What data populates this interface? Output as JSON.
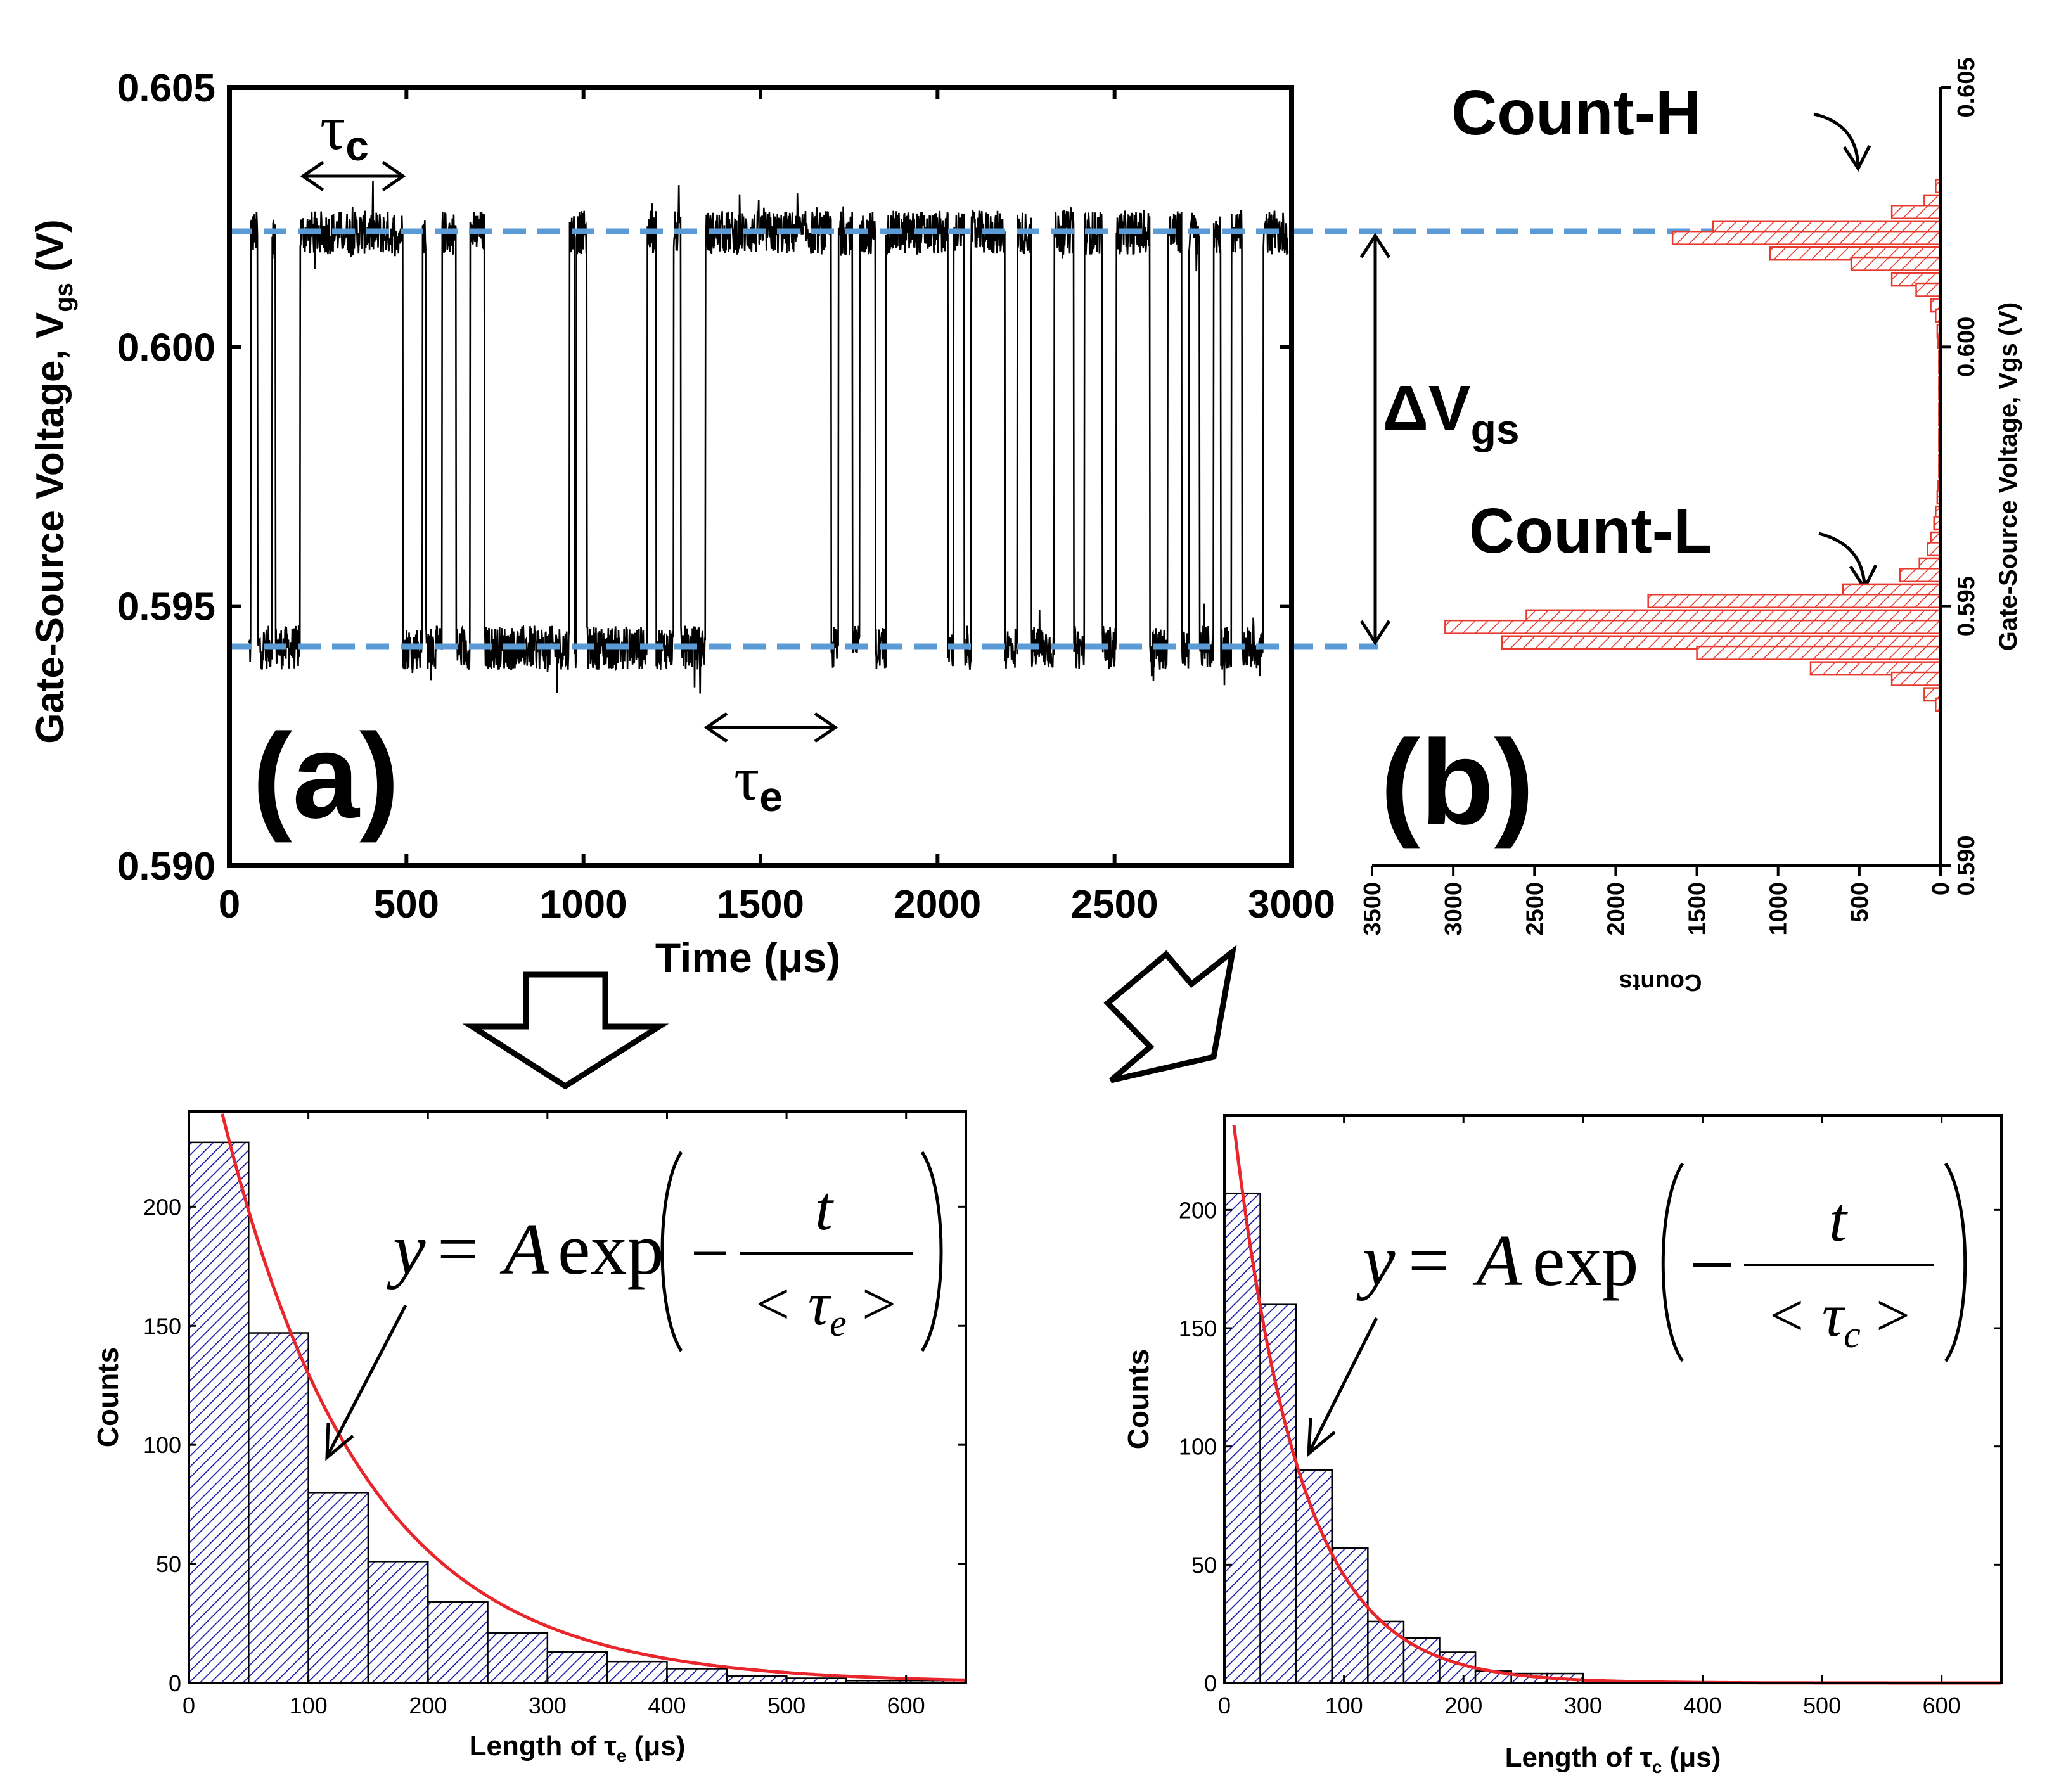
{
  "chart_data": [
    {
      "id": "a",
      "type": "line",
      "panel_label": "(a)",
      "xlabel": "Time (μs)",
      "ylabel": "Gate-Source Voltage, V",
      "ylabel_sub": "gs",
      "ylabel_unit": " (V)",
      "xlim": [
        0,
        3000
      ],
      "ylim": [
        0.59,
        0.605
      ],
      "xticks": [
        "0",
        "500",
        "1000",
        "1500",
        "2000",
        "2500",
        "3000"
      ],
      "xtick_values": [
        0,
        500,
        1000,
        1500,
        2000,
        2500,
        3000
      ],
      "yticks": [
        "0.590",
        "0.595",
        "0.600",
        "0.605"
      ],
      "ytick_values": [
        0.59,
        0.595,
        0.6,
        0.605
      ],
      "levels": {
        "high": 0.6022,
        "low": 0.5942
      },
      "switch_times_us": [
        60,
        80,
        120,
        130,
        200,
        490,
        545,
        555,
        600,
        640,
        680,
        720,
        960,
        975,
        980,
        1010,
        1180,
        1205,
        1255,
        1275,
        1345,
        1700,
        1720,
        1760,
        1780,
        1825,
        1855,
        2030,
        2045,
        2075,
        2095,
        2190,
        2225,
        2265,
        2330,
        2385,
        2415,
        2465,
        2505,
        2600,
        2650,
        2690,
        2710,
        2740,
        2780,
        2800,
        2830,
        2860,
        2920
      ],
      "annotations": {
        "tau_c": "τ",
        "tau_c_sub": "c",
        "tau_e": "τ",
        "tau_e_sub": "e",
        "delta": "ΔV",
        "delta_sub": "gs",
        "count_h": "Count-H",
        "count_l": "Count-L"
      }
    },
    {
      "id": "b",
      "type": "bar",
      "orientation": "horizontal-reversed",
      "panel_label": "(b)",
      "xlabel": "Counts",
      "ylabel": "Gate-Source Voltage, Vgs (V)",
      "xlim": [
        0,
        3500
      ],
      "ylim": [
        0.59,
        0.605
      ],
      "xticks": [
        "0",
        "500",
        "1000",
        "1500",
        "2000",
        "2500",
        "3000",
        "3500"
      ],
      "xtick_values": [
        0,
        500,
        1000,
        1500,
        2000,
        2500,
        3000,
        3500
      ],
      "yticks": [
        "0.590",
        "0.595",
        "0.600",
        "0.605"
      ],
      "ytick_values": [
        0.59,
        0.595,
        0.6,
        0.605
      ],
      "bin_width": 0.00025,
      "bins": [
        0.6031,
        0.6028,
        0.6026,
        0.6023,
        0.6021,
        0.6018,
        0.6016,
        0.6013,
        0.6011,
        0.6008,
        0.6006,
        0.6003,
        0.6001,
        0.5998,
        0.5996,
        0.5993,
        0.5991,
        0.5988,
        0.5986,
        0.5983,
        0.5981,
        0.5978,
        0.5976,
        0.5973,
        0.5971,
        0.5968,
        0.5966,
        0.5963,
        0.5961,
        0.5958,
        0.5956,
        0.5953,
        0.5951,
        0.5948,
        0.5946,
        0.5943,
        0.5941,
        0.5938,
        0.5936,
        0.5933,
        0.5931
      ],
      "values": [
        30,
        100,
        300,
        1400,
        1650,
        1050,
        550,
        300,
        150,
        60,
        30,
        20,
        15,
        10,
        10,
        10,
        10,
        10,
        10,
        10,
        10,
        10,
        10,
        15,
        20,
        30,
        40,
        60,
        80,
        130,
        250,
        600,
        1800,
        2550,
        3050,
        2700,
        1500,
        800,
        300,
        100,
        30
      ]
    },
    {
      "id": "c",
      "type": "bar",
      "xlabel": "Length of τ",
      "xlabel_sub": "e",
      "xlabel_unit": " (μs)",
      "ylabel": "Counts",
      "xlim": [
        0,
        650
      ],
      "ylim": [
        0,
        240
      ],
      "xticks": [
        "0",
        "100",
        "200",
        "300",
        "400",
        "500",
        "600"
      ],
      "xtick_values": [
        0,
        100,
        200,
        300,
        400,
        500,
        600
      ],
      "yticks": [
        "0",
        "50",
        "100",
        "150",
        "200"
      ],
      "ytick_values": [
        0,
        50,
        100,
        150,
        200
      ],
      "bin_width": 50,
      "bin_starts": [
        0,
        50,
        100,
        150,
        200,
        250,
        300,
        350,
        400,
        450,
        500,
        550,
        600
      ],
      "values": [
        227,
        147,
        80,
        51,
        34,
        21,
        13,
        9,
        6,
        3,
        2,
        1,
        1
      ],
      "fit": {
        "type": "exp",
        "A": 303,
        "tau": 118,
        "label_lhs": "y",
        "label_eq": "= ",
        "label_A": "A",
        "label_exp": "exp",
        "label_num": "t",
        "label_den": "< τ",
        "label_den_sub": "e",
        "label_den_end": " >"
      }
    },
    {
      "id": "d",
      "type": "bar",
      "xlabel": "Length of τ",
      "xlabel_sub": "c",
      "xlabel_unit": " (μs)",
      "ylabel": "Counts",
      "xlim": [
        0,
        650
      ],
      "ylim": [
        0,
        240
      ],
      "xticks": [
        "0",
        "100",
        "200",
        "300",
        "400",
        "500",
        "600"
      ],
      "xtick_values": [
        0,
        100,
        200,
        300,
        400,
        500,
        600
      ],
      "yticks": [
        "0",
        "50",
        "100",
        "150",
        "200"
      ],
      "ytick_values": [
        0,
        50,
        100,
        150,
        200
      ],
      "bin_width": 30,
      "bin_starts": [
        0,
        30,
        60,
        90,
        120,
        150,
        180,
        210,
        240,
        270,
        300,
        330
      ],
      "values": [
        207,
        160,
        90,
        57,
        26,
        19,
        13,
        5,
        4,
        4,
        1,
        1
      ],
      "fit": {
        "type": "exp",
        "A": 272,
        "tau": 56,
        "label_lhs": "y",
        "label_eq": "= ",
        "label_A": "A",
        "label_exp": "exp",
        "label_num": "t",
        "label_den": "< τ",
        "label_den_sub": "c",
        "label_den_end": " >"
      }
    }
  ]
}
